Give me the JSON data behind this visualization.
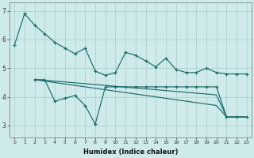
{
  "xlabel": "Humidex (Indice chaleur)",
  "bg_color": "#ceeaea",
  "line_color": "#1a6b6b",
  "grid_color": "#a8cccc",
  "xlim": [
    -0.5,
    23.5
  ],
  "ylim": [
    2.6,
    7.3
  ],
  "yticks": [
    3,
    4,
    5,
    6,
    7
  ],
  "xticks": [
    0,
    1,
    2,
    3,
    4,
    5,
    6,
    7,
    8,
    9,
    10,
    11,
    12,
    13,
    14,
    15,
    16,
    17,
    18,
    19,
    20,
    21,
    22,
    23
  ],
  "line1_x": [
    0,
    1,
    2,
    3,
    4,
    5,
    6,
    7,
    8,
    9,
    10,
    11,
    12,
    13,
    14,
    15,
    16,
    17,
    18,
    19,
    20,
    21,
    22,
    23
  ],
  "line1_y": [
    5.8,
    6.9,
    6.5,
    6.2,
    5.9,
    5.7,
    5.5,
    5.7,
    4.9,
    4.75,
    4.85,
    5.55,
    5.45,
    5.25,
    5.05,
    5.35,
    4.95,
    4.85,
    4.85,
    5.0,
    4.85,
    4.8,
    4.8,
    4.8
  ],
  "line2_x": [
    2,
    3,
    4,
    5,
    6,
    7,
    8,
    9,
    10,
    11,
    12,
    13,
    14,
    15,
    16,
    17,
    18,
    19,
    20,
    21,
    22,
    23
  ],
  "line2_y": [
    4.6,
    4.6,
    3.85,
    3.95,
    4.05,
    3.7,
    3.05,
    4.35,
    4.35,
    4.35,
    4.35,
    4.35,
    4.35,
    4.35,
    4.35,
    4.35,
    4.35,
    4.35,
    4.35,
    3.3,
    3.3,
    3.3
  ],
  "line3_x": [
    2,
    3,
    4,
    5,
    6,
    7,
    8,
    9,
    10,
    11,
    12,
    13,
    14,
    15,
    16,
    17,
    18,
    19,
    20,
    21,
    22,
    23
  ],
  "line3_y": [
    4.6,
    4.58,
    4.55,
    4.52,
    4.49,
    4.46,
    4.43,
    4.4,
    4.37,
    4.34,
    4.31,
    4.28,
    4.25,
    4.22,
    4.19,
    4.16,
    4.13,
    4.1,
    4.07,
    3.3,
    3.3,
    3.3
  ],
  "line4_x": [
    2,
    3,
    4,
    5,
    6,
    7,
    8,
    9,
    10,
    11,
    12,
    13,
    14,
    15,
    16,
    17,
    18,
    19,
    20,
    21,
    22,
    23
  ],
  "line4_y": [
    4.6,
    4.55,
    4.5,
    4.45,
    4.4,
    4.35,
    4.3,
    4.25,
    4.2,
    4.15,
    4.1,
    4.05,
    4.0,
    3.95,
    3.9,
    3.85,
    3.8,
    3.75,
    3.7,
    3.3,
    3.3,
    3.3
  ]
}
